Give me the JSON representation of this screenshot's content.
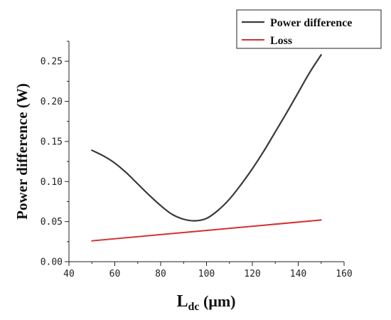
{
  "chart_data": {
    "type": "line",
    "title": "",
    "xlabel_main": "L",
    "xlabel_sub": "dc",
    "xlabel_unit": " (μm)",
    "ylabel": "Power difference (W)",
    "xlim": [
      40,
      160
    ],
    "ylim": [
      0,
      0.275
    ],
    "xticks": [
      40,
      60,
      80,
      100,
      120,
      140,
      160
    ],
    "xtick_labels": [
      "40",
      "60",
      "80",
      "100",
      "120",
      "140",
      "160"
    ],
    "yticks": [
      0,
      0.05,
      0.1,
      0.15,
      0.2,
      0.25
    ],
    "ytick_labels": [
      "0.00",
      "0.05",
      "0.10",
      "0.15",
      "0.20",
      "0.25"
    ],
    "grid": false,
    "legend_position": "top-right",
    "series": [
      {
        "name": "Power difference",
        "color": "#3a3a3a",
        "x": [
          50,
          55,
          60,
          65,
          70,
          75,
          80,
          85,
          90,
          95,
          100,
          105,
          110,
          115,
          120,
          125,
          130,
          135,
          140,
          145,
          150
        ],
        "y": [
          0.139,
          0.132,
          0.123,
          0.111,
          0.097,
          0.083,
          0.07,
          0.059,
          0.053,
          0.051,
          0.054,
          0.064,
          0.078,
          0.096,
          0.116,
          0.138,
          0.162,
          0.186,
          0.211,
          0.236,
          0.258
        ]
      },
      {
        "name": "Loss",
        "color": "#d62f2f",
        "x": [
          50,
          150
        ],
        "y": [
          0.026,
          0.052
        ]
      }
    ]
  }
}
